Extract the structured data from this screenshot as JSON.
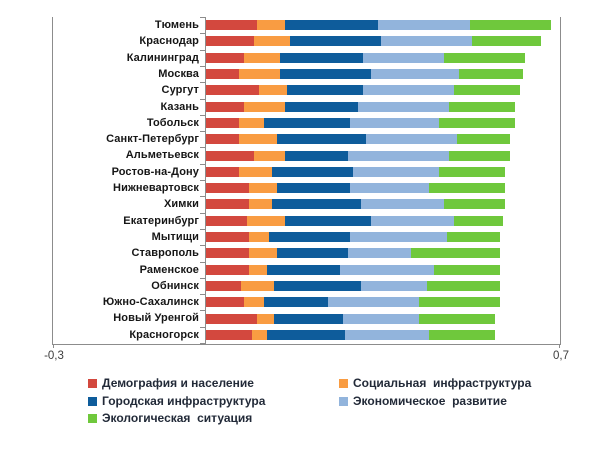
{
  "chart_data": {
    "type": "bar",
    "subtype": "horizontal-stacked",
    "title": "",
    "categories": [
      "Тюмень",
      "Краснодар",
      "Калининград",
      "Москва",
      "Сургут",
      "Казань",
      "Тобольск",
      "Санкт-Петербург",
      "Альметьевск",
      "Ростов-на-Дону",
      "Нижневартовск",
      "Химки",
      "Екатеринбург",
      "Мытищи",
      "Ставрополь",
      "Раменское",
      "Обнинск",
      "Южно-Сахалинск",
      "Новый Уренгой",
      "Красногорск"
    ],
    "series": [
      {
        "name": "Демография и население",
        "color": "#d3483e",
        "values": [
          0.1,
          0.095,
          0.075,
          0.065,
          0.105,
          0.075,
          0.065,
          0.065,
          0.095,
          0.065,
          0.085,
          0.085,
          0.08,
          0.085,
          0.085,
          0.085,
          0.07,
          0.075,
          0.1,
          0.09
        ]
      },
      {
        "name": "Социальная  инфраструктура",
        "color": "#f99c42",
        "values": [
          0.055,
          0.07,
          0.07,
          0.08,
          0.055,
          0.08,
          0.05,
          0.075,
          0.06,
          0.065,
          0.055,
          0.045,
          0.075,
          0.04,
          0.055,
          0.035,
          0.065,
          0.04,
          0.035,
          0.03
        ]
      },
      {
        "name": "Городская инфраструктура",
        "color": "#0e5c9b",
        "values": [
          0.185,
          0.18,
          0.165,
          0.18,
          0.15,
          0.145,
          0.17,
          0.175,
          0.125,
          0.16,
          0.145,
          0.175,
          0.17,
          0.16,
          0.14,
          0.145,
          0.17,
          0.125,
          0.135,
          0.155
        ]
      },
      {
        "name": "Экономическое  развитие",
        "color": "#92b4dc",
        "values": [
          0.18,
          0.18,
          0.16,
          0.175,
          0.18,
          0.18,
          0.175,
          0.18,
          0.2,
          0.17,
          0.155,
          0.165,
          0.165,
          0.19,
          0.125,
          0.185,
          0.13,
          0.18,
          0.15,
          0.165
        ]
      },
      {
        "name": "Экологическая  ситуация",
        "color": "#6fc83c",
        "values": [
          0.16,
          0.135,
          0.16,
          0.125,
          0.13,
          0.13,
          0.15,
          0.105,
          0.12,
          0.13,
          0.15,
          0.12,
          0.095,
          0.105,
          0.175,
          0.13,
          0.145,
          0.16,
          0.15,
          0.13
        ]
      }
    ],
    "x_axis": {
      "min": -0.3,
      "max": 0.7,
      "tick_label_min": "-0,3",
      "tick_label_max": "0,7",
      "grid": false
    },
    "legend_position": "bottom",
    "axis_color": "#8c8c8c"
  }
}
